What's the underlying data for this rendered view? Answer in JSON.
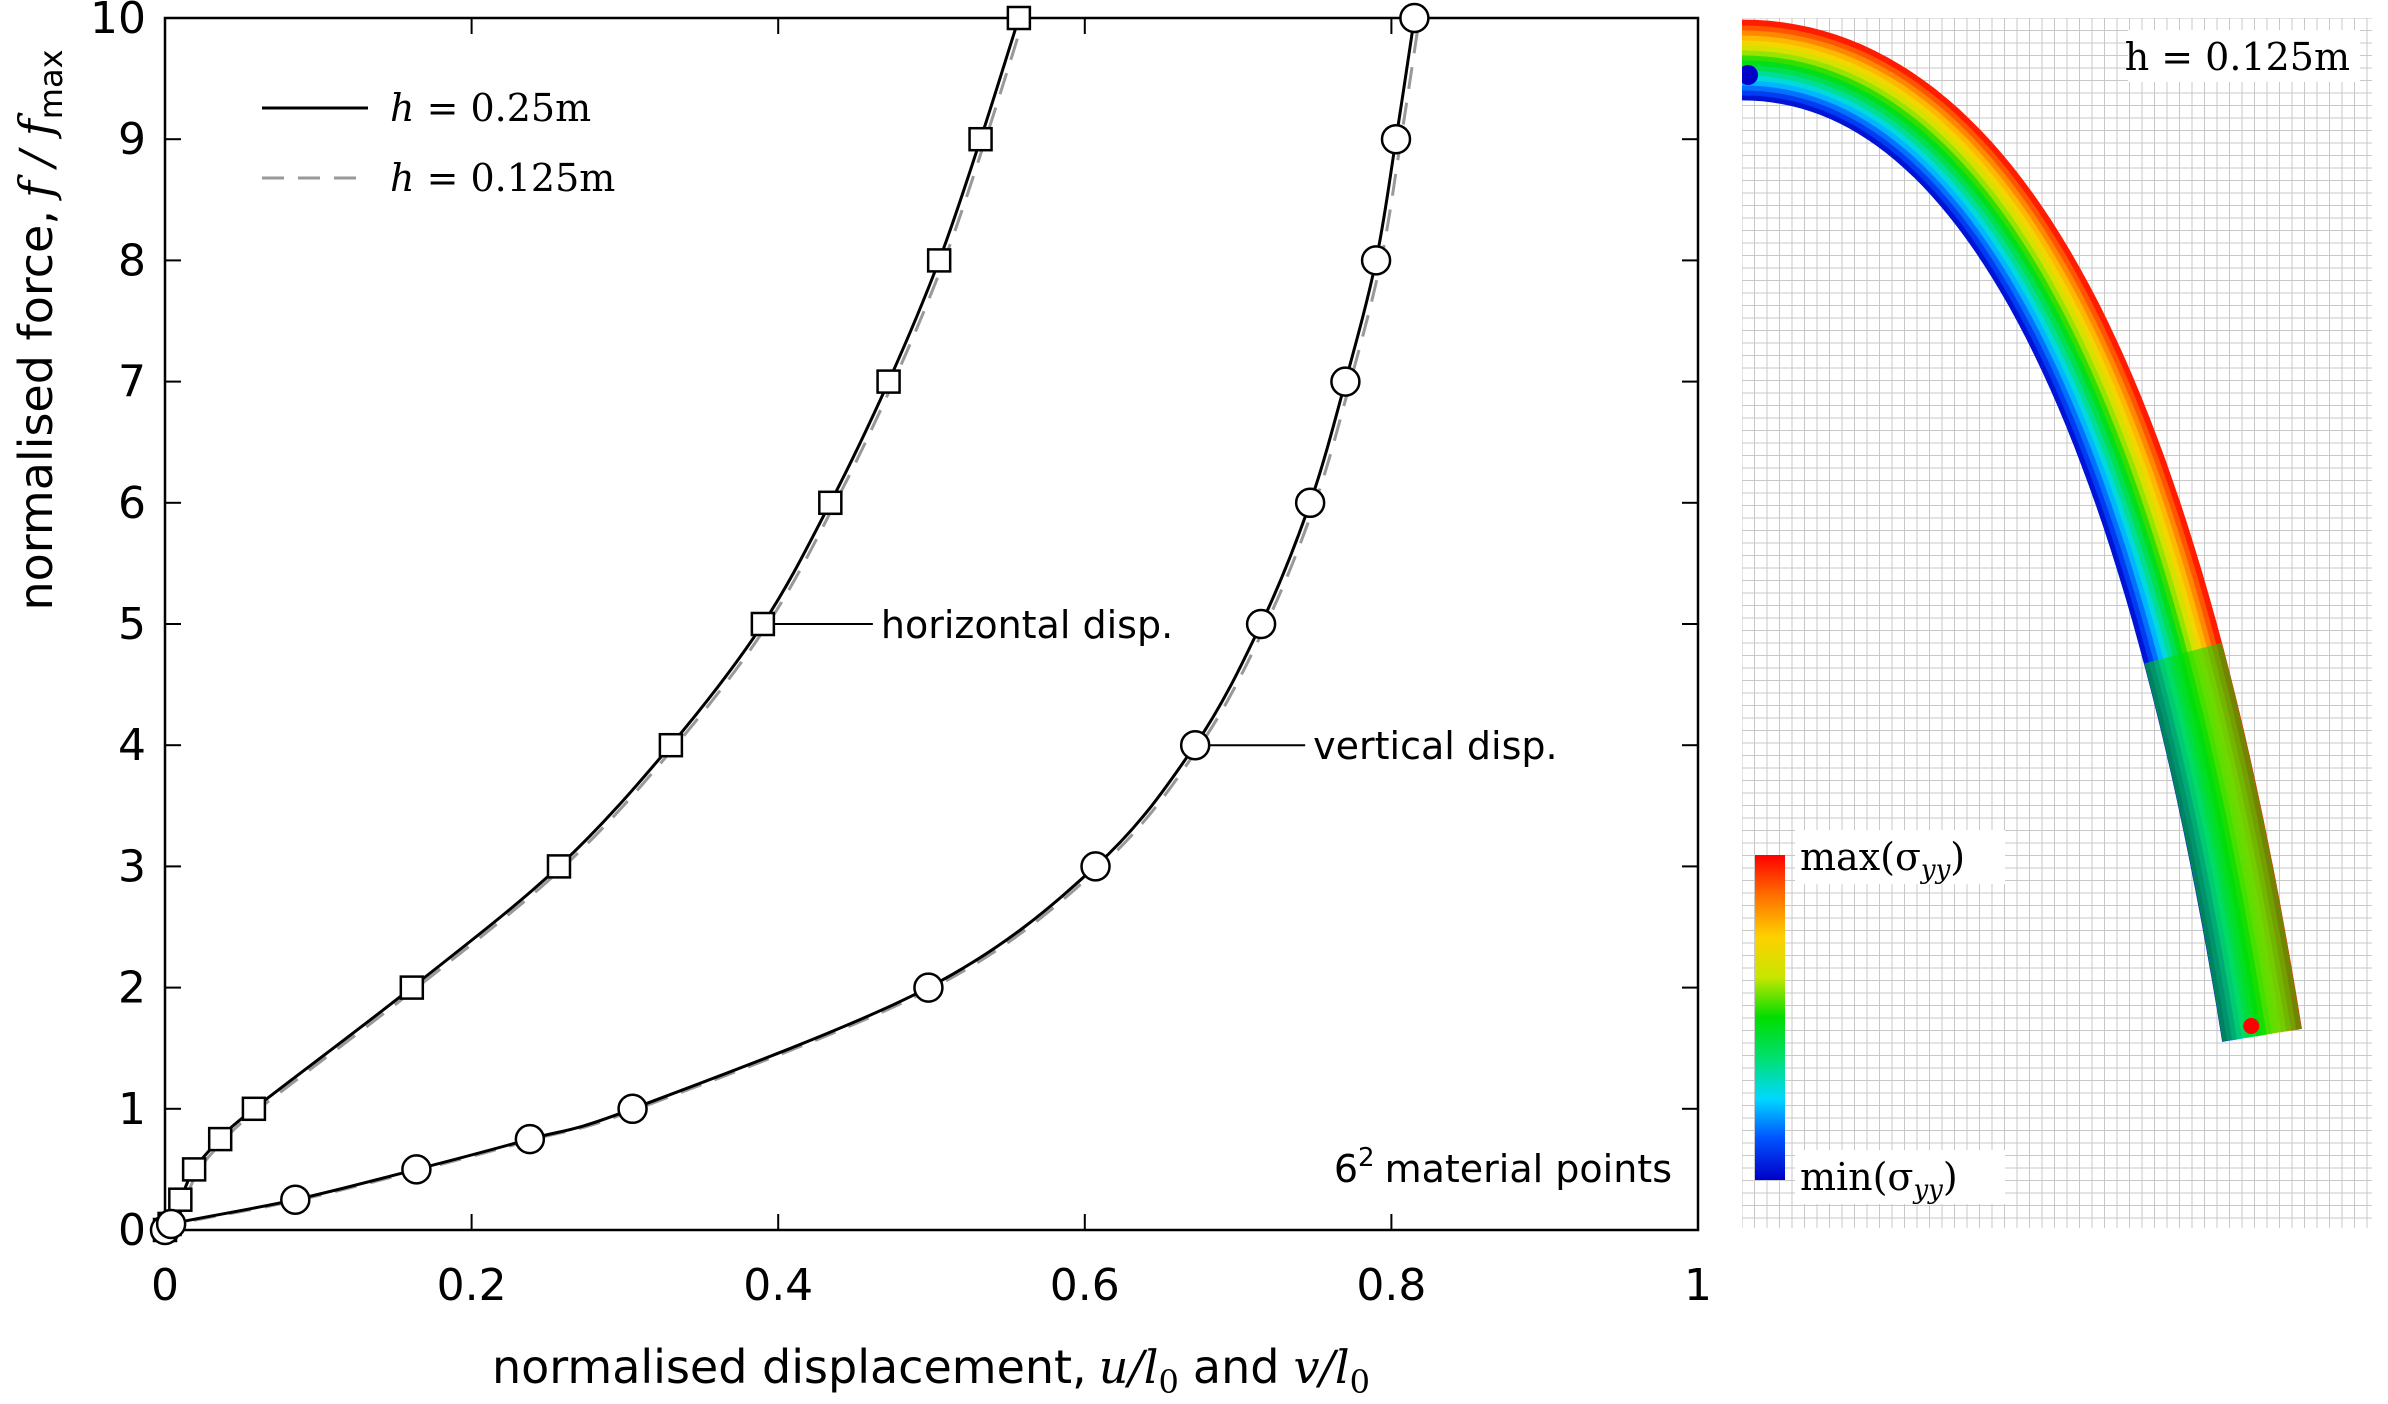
{
  "chart_data": [
    {
      "type": "line",
      "xlabel_text": "normalised displacement,",
      "xlabel_math": "u/l",
      "xlabel_sub": "0",
      "xlabel_and": "and",
      "xlabel_math2": "v/l",
      "xlabel_sub2": "0",
      "ylabel_text": "normalised force,",
      "ylabel_math": "f / f",
      "ylabel_sub": "max",
      "xlim": [
        0,
        1
      ],
      "ylim": [
        0,
        10
      ],
      "xticks": [
        0,
        0.2,
        0.4,
        0.6,
        0.8,
        1
      ],
      "xtick_labels": [
        "0",
        "0.2",
        "0.4",
        "0.6",
        "0.8",
        "1"
      ],
      "yticks": [
        0,
        1,
        2,
        3,
        4,
        5,
        6,
        7,
        8,
        9,
        10
      ],
      "ytick_labels": [
        "0",
        "1",
        "2",
        "3",
        "4",
        "5",
        "6",
        "7",
        "8",
        "9",
        "10"
      ],
      "grid": false,
      "legend": {
        "placement": "top-left",
        "entries": [
          {
            "label": "h = 0.25m",
            "style": "solid",
            "color": "#000000"
          },
          {
            "label": "h = 0.125m",
            "style": "dashed",
            "color": "#999999"
          }
        ]
      },
      "series": [
        {
          "marker": "square",
          "annotation": "horizontal disp.",
          "annotation_at": [
            0.39,
            5
          ],
          "x": [
            0,
            0.003,
            0.01,
            0.019,
            0.036,
            0.058,
            0.161,
            0.257,
            0.33,
            0.39,
            0.434,
            0.472,
            0.505,
            0.532,
            0.557
          ],
          "y": [
            0,
            0.05,
            0.25,
            0.5,
            0.75,
            1,
            2,
            3,
            4,
            5,
            6,
            7,
            8,
            9,
            10
          ]
        },
        {
          "marker": "circle",
          "annotation": "vertical disp.",
          "annotation_at": [
            0.672,
            4
          ],
          "x": [
            0,
            0.004,
            0.085,
            0.164,
            0.238,
            0.305,
            0.498,
            0.607,
            0.672,
            0.715,
            0.747,
            0.77,
            0.79,
            0.803,
            0.815
          ],
          "y": [
            0,
            0.05,
            0.25,
            0.5,
            0.75,
            1,
            2,
            3,
            4,
            5,
            6,
            7,
            8,
            9,
            10
          ]
        }
      ],
      "annotation_corner": {
        "base": "6",
        "sup": "2",
        "text": "material points"
      }
    },
    {
      "type": "heatmap",
      "label": "h = 0.125m",
      "colorbar_max": "max(σ",
      "colorbar_min": "min(σ",
      "colorbar_sub": "yy",
      "colormap": [
        "#0000c8",
        "#0050ff",
        "#00d8ff",
        "#00e070",
        "#00dd00",
        "#c8e600",
        "#ffd000",
        "#ff7000",
        "#ff0000"
      ]
    }
  ]
}
